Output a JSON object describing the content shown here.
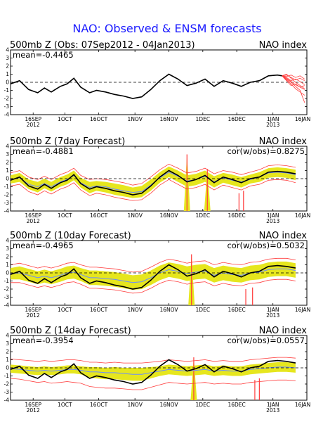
{
  "title": "NAO: Observed & ENSM forecasts",
  "colors": {
    "title": "#1a1aff",
    "observed": "#000000",
    "ensemble_members": "#ff3b3b",
    "spread": "#e6e61e",
    "ensemble_mean": "#6a8cff",
    "axis": "#000000"
  },
  "x_ticks": [
    {
      "day": 10,
      "label": "16SEP",
      "sub": "2012"
    },
    {
      "day": 24,
      "label": "1OCT",
      "sub": ""
    },
    {
      "day": 39,
      "label": "16OCT",
      "sub": ""
    },
    {
      "day": 55,
      "label": "1NOV",
      "sub": ""
    },
    {
      "day": 70,
      "label": "16NOV",
      "sub": ""
    },
    {
      "day": 85,
      "label": "1DEC",
      "sub": ""
    },
    {
      "day": 100,
      "label": "16DEC",
      "sub": ""
    },
    {
      "day": 116,
      "label": "1JAN",
      "sub": "2013"
    },
    {
      "day": 131,
      "label": "16JAN",
      "sub": ""
    }
  ],
  "y_ticks": [
    "4",
    "3",
    "2",
    "1",
    "0",
    "-1",
    "-2",
    "-3",
    "-4"
  ],
  "chart_data": [
    {
      "type": "line",
      "title": "500mb Z (Obs: 07Sep2012 - 04Jan2013)",
      "right_title": "NAO index",
      "stat_left": "mean=-0.4465",
      "stat_right": "",
      "ylim": [
        -4,
        4
      ],
      "xlim": [
        0,
        131
      ],
      "series": [
        {
          "role": "observed",
          "x": [
            0,
            4,
            8,
            12,
            15,
            18,
            22,
            25,
            28,
            31,
            35,
            38,
            42,
            46,
            50,
            54,
            58,
            62,
            66,
            70,
            74,
            78,
            82,
            86,
            90,
            94,
            98,
            102,
            106,
            110,
            114,
            118,
            120
          ],
          "values": [
            -0.2,
            0.2,
            -0.9,
            -1.3,
            -0.7,
            -1.2,
            -0.5,
            -0.2,
            0.5,
            -0.6,
            -1.3,
            -1.0,
            -1.2,
            -1.5,
            -1.7,
            -2.0,
            -1.8,
            -0.9,
            0.2,
            1.0,
            0.4,
            -0.4,
            -0.1,
            0.4,
            -0.5,
            0.2,
            -0.1,
            -0.5,
            0.0,
            0.2,
            0.8,
            0.9,
            0.8
          ]
        }
      ],
      "members": {
        "start_day": 120,
        "x": [
          120,
          122,
          124,
          126,
          128,
          130
        ],
        "values": [
          [
            0.8,
            0.9,
            0.6,
            0.3,
            0.5,
            0.2
          ],
          [
            0.8,
            0.5,
            0.1,
            -0.3,
            -0.6,
            -0.9
          ],
          [
            0.8,
            0.7,
            0.9,
            0.6,
            0.8,
            0.4
          ],
          [
            0.8,
            0.3,
            -0.2,
            -0.8,
            -1.2,
            -1.6
          ],
          [
            0.8,
            0.6,
            0.2,
            0.4,
            0.1,
            -0.3
          ],
          [
            0.8,
            0.2,
            -0.4,
            -0.2,
            -0.6,
            -0.4
          ],
          [
            0.8,
            1.0,
            0.5,
            0.0,
            -0.4,
            -0.8
          ],
          [
            0.8,
            0.4,
            0.0,
            -0.5,
            -1.0,
            -2.5
          ]
        ]
      }
    },
    {
      "type": "line",
      "title": "500mb Z (7day Forecast)",
      "right_title": "NAO index",
      "stat_left": "mean=-0.4881",
      "stat_right": "cor(w/obs)=0.8275",
      "ylim": [
        -4,
        4
      ],
      "xlim": [
        0,
        131
      ],
      "x": [
        0,
        4,
        8,
        12,
        15,
        18,
        22,
        25,
        28,
        31,
        35,
        38,
        42,
        46,
        50,
        54,
        58,
        62,
        66,
        70,
        74,
        78,
        82,
        86,
        90,
        94,
        98,
        102,
        106,
        110,
        114,
        118,
        122,
        126
      ],
      "observed": [
        -0.2,
        0.2,
        -0.9,
        -1.3,
        -0.7,
        -1.2,
        -0.5,
        -0.2,
        0.5,
        -0.6,
        -1.3,
        -1.0,
        -1.2,
        -1.5,
        -1.7,
        -2.0,
        -1.8,
        -0.9,
        0.2,
        1.0,
        0.4,
        -0.4,
        -0.1,
        0.4,
        -0.5,
        0.2,
        -0.1,
        -0.5,
        0.0,
        0.2,
        0.8,
        0.9,
        0.8,
        0.6
      ],
      "mean": [
        -0.1,
        0.1,
        -0.7,
        -1.0,
        -0.6,
        -1.0,
        -0.4,
        -0.1,
        0.4,
        -0.5,
        -1.1,
        -0.9,
        -1.0,
        -1.3,
        -1.5,
        -1.7,
        -1.6,
        -0.8,
        0.1,
        0.8,
        0.3,
        -0.3,
        -0.1,
        0.3,
        -0.4,
        0.1,
        -0.2,
        -0.4,
        -0.1,
        0.2,
        0.7,
        0.8,
        0.7,
        0.5
      ],
      "spread_lo": [
        -0.6,
        -0.4,
        -1.3,
        -1.7,
        -1.2,
        -1.6,
        -1.0,
        -0.7,
        -0.2,
        -1.1,
        -1.8,
        -1.5,
        -1.7,
        -2.0,
        -2.2,
        -2.4,
        -2.3,
        -1.5,
        -0.5,
        0.2,
        -0.4,
        -1.0,
        -0.8,
        -0.4,
        -1.1,
        -0.5,
        -0.8,
        -1.1,
        -0.6,
        -0.4,
        0.1,
        0.2,
        0.1,
        -0.2
      ],
      "spread_hi": [
        0.4,
        0.7,
        -0.1,
        -0.4,
        0.0,
        -0.4,
        0.2,
        0.5,
        1.0,
        0.1,
        -0.4,
        -0.3,
        -0.4,
        -0.6,
        -0.8,
        -1.1,
        -0.9,
        -0.1,
        0.8,
        1.5,
        1.0,
        0.4,
        0.6,
        1.0,
        0.3,
        0.7,
        0.5,
        0.2,
        0.5,
        0.8,
        1.3,
        1.4,
        1.3,
        1.1
      ],
      "env_lo": [
        -0.9,
        -0.7,
        -1.6,
        -2.0,
        -1.5,
        -1.9,
        -1.3,
        -1.0,
        -0.5,
        -1.4,
        -2.1,
        -1.8,
        -2.0,
        -2.3,
        -2.5,
        -2.7,
        -2.6,
        -1.8,
        -0.8,
        -0.1,
        -0.7,
        -1.3,
        -1.1,
        -0.7,
        -1.4,
        -0.8,
        -1.1,
        -1.4,
        -0.9,
        -0.7,
        -0.2,
        -0.1,
        -0.2,
        -0.5
      ],
      "env_hi": [
        0.7,
        1.0,
        0.2,
        -0.1,
        0.3,
        -0.1,
        0.5,
        0.8,
        1.3,
        0.4,
        -0.1,
        0.0,
        -0.1,
        -0.3,
        -0.5,
        -0.8,
        -0.6,
        0.2,
        1.1,
        1.8,
        1.3,
        0.7,
        0.9,
        1.3,
        0.6,
        1.0,
        0.8,
        0.5,
        0.8,
        1.1,
        1.6,
        1.7,
        1.6,
        1.4
      ],
      "spikes": [
        {
          "x": 78,
          "lo": -4,
          "hi": 3.0,
          "spread": true
        },
        {
          "x": 87,
          "lo": -4,
          "hi": 1.2,
          "spread": true
        },
        {
          "x": 101,
          "lo": -4,
          "hi": -1.8,
          "spread": false
        },
        {
          "x": 103,
          "lo": -4,
          "hi": -1.5,
          "spread": false
        }
      ]
    },
    {
      "type": "line",
      "title": "500mb Z (10day Forecast)",
      "right_title": "NAO index",
      "stat_left": "mean=-0.4965",
      "stat_right": "cor(w/obs)=0.5032",
      "ylim": [
        -4,
        4
      ],
      "xlim": [
        0,
        131
      ],
      "x": [
        0,
        4,
        8,
        12,
        15,
        18,
        22,
        25,
        28,
        31,
        35,
        38,
        42,
        46,
        50,
        54,
        58,
        62,
        66,
        70,
        74,
        78,
        82,
        86,
        90,
        94,
        98,
        102,
        106,
        110,
        114,
        118,
        122,
        126
      ],
      "observed": [
        -0.2,
        0.2,
        -0.9,
        -1.3,
        -0.7,
        -1.2,
        -0.5,
        -0.2,
        0.5,
        -0.6,
        -1.3,
        -1.0,
        -1.2,
        -1.5,
        -1.7,
        -2.0,
        -1.8,
        -0.9,
        0.2,
        1.0,
        0.4,
        -0.4,
        -0.1,
        0.4,
        -0.5,
        0.2,
        -0.1,
        -0.5,
        0.0,
        0.2,
        0.8,
        0.9,
        0.8,
        0.6
      ],
      "mean": [
        -0.1,
        0.0,
        -0.3,
        -0.6,
        -0.4,
        -0.6,
        -0.3,
        0.0,
        0.1,
        -0.2,
        -0.6,
        -0.6,
        -0.7,
        -0.8,
        -1.0,
        -1.2,
        -1.1,
        -0.6,
        0.0,
        0.4,
        0.2,
        -0.1,
        0.1,
        0.2,
        -0.3,
        0.0,
        -0.2,
        -0.3,
        0.0,
        0.1,
        0.4,
        0.5,
        0.5,
        0.3
      ],
      "spread_lo": [
        -0.8,
        -0.8,
        -1.1,
        -1.4,
        -1.2,
        -1.4,
        -1.1,
        -0.8,
        -0.7,
        -1.0,
        -1.5,
        -1.5,
        -1.6,
        -1.7,
        -1.9,
        -2.1,
        -2.0,
        -1.5,
        -0.9,
        -0.5,
        -0.7,
        -1.0,
        -0.8,
        -0.7,
        -1.2,
        -0.9,
        -1.1,
        -1.2,
        -0.9,
        -0.8,
        -0.5,
        -0.4,
        -0.4,
        -0.6
      ],
      "spread_hi": [
        0.6,
        0.8,
        0.5,
        0.2,
        0.4,
        0.2,
        0.5,
        0.8,
        0.9,
        0.6,
        0.3,
        0.3,
        0.2,
        0.1,
        -0.1,
        -0.3,
        -0.2,
        0.3,
        0.9,
        1.3,
        1.1,
        0.8,
        1.0,
        1.1,
        0.6,
        0.9,
        0.7,
        0.6,
        0.9,
        1.0,
        1.3,
        1.4,
        1.4,
        1.2
      ],
      "env_lo": [
        -1.2,
        -1.2,
        -1.5,
        -1.8,
        -1.6,
        -1.8,
        -1.5,
        -1.2,
        -1.1,
        -1.4,
        -1.9,
        -1.9,
        -2.0,
        -2.1,
        -2.3,
        -2.5,
        -2.4,
        -1.9,
        -1.3,
        -0.9,
        -1.1,
        -1.4,
        -1.2,
        -1.1,
        -1.6,
        -1.3,
        -1.5,
        -1.6,
        -1.3,
        -1.2,
        -0.9,
        -0.8,
        -0.8,
        -1.0
      ],
      "env_hi": [
        1.0,
        1.2,
        0.9,
        0.6,
        0.8,
        0.6,
        0.9,
        1.2,
        1.3,
        1.0,
        0.7,
        0.7,
        0.6,
        0.5,
        0.3,
        0.1,
        0.2,
        0.7,
        1.3,
        1.7,
        1.5,
        1.2,
        1.4,
        1.5,
        1.0,
        1.3,
        1.1,
        1.0,
        1.3,
        1.4,
        1.7,
        1.8,
        1.8,
        1.6
      ],
      "spikes": [
        {
          "x": 80,
          "lo": -4,
          "hi": 2.3,
          "spread": true
        },
        {
          "x": 104,
          "lo": -4,
          "hi": -2.0,
          "spread": false
        },
        {
          "x": 107,
          "lo": -4,
          "hi": -1.8,
          "spread": false
        }
      ]
    },
    {
      "type": "line",
      "title": "500mb Z (14day Forecast)",
      "right_title": "NAO index",
      "stat_left": "mean=-0.3954",
      "stat_right": "cor(w/obs)=0.0557",
      "ylim": [
        -4,
        4
      ],
      "xlim": [
        0,
        131
      ],
      "x": [
        0,
        4,
        8,
        12,
        15,
        18,
        22,
        25,
        28,
        31,
        35,
        38,
        42,
        46,
        50,
        54,
        58,
        62,
        66,
        70,
        74,
        78,
        82,
        86,
        90,
        94,
        98,
        102,
        106,
        110,
        114,
        118,
        122,
        126
      ],
      "observed": [
        -0.2,
        0.2,
        -0.9,
        -1.3,
        -0.7,
        -1.2,
        -0.5,
        -0.2,
        0.5,
        -0.6,
        -1.3,
        -1.0,
        -1.2,
        -1.5,
        -1.7,
        -2.0,
        -1.8,
        -0.9,
        0.2,
        1.0,
        0.4,
        -0.4,
        -0.1,
        0.4,
        -0.5,
        0.2,
        -0.1,
        -0.5,
        0.0,
        0.2,
        0.8,
        0.9,
        0.8,
        0.6
      ],
      "mean": [
        -0.1,
        -0.2,
        -0.3,
        -0.4,
        -0.3,
        -0.4,
        -0.3,
        -0.2,
        -0.2,
        -0.3,
        -0.5,
        -0.5,
        -0.6,
        -0.6,
        -0.7,
        -0.8,
        -0.8,
        -0.6,
        -0.4,
        -0.2,
        -0.3,
        -0.4,
        -0.3,
        -0.2,
        -0.4,
        -0.3,
        -0.4,
        -0.4,
        -0.2,
        -0.1,
        0.0,
        0.1,
        0.1,
        0.0
      ],
      "spread_lo": [
        -0.6,
        -0.7,
        -0.8,
        -0.9,
        -0.8,
        -0.9,
        -0.8,
        -0.7,
        -0.7,
        -0.8,
        -1.2,
        -1.3,
        -1.4,
        -1.4,
        -1.5,
        -1.6,
        -1.6,
        -1.3,
        -1.0,
        -0.8,
        -0.9,
        -1.0,
        -0.9,
        -0.8,
        -1.0,
        -0.9,
        -1.0,
        -1.0,
        -0.8,
        -0.7,
        -0.6,
        -0.5,
        -0.5,
        -0.6
      ],
      "spread_hi": [
        0.4,
        0.3,
        0.2,
        0.1,
        0.2,
        0.1,
        0.2,
        0.3,
        0.3,
        0.2,
        0.1,
        0.1,
        0.0,
        0.1,
        0.0,
        0.0,
        0.0,
        0.1,
        0.2,
        0.4,
        0.3,
        0.2,
        0.3,
        0.4,
        0.2,
        0.3,
        0.2,
        0.2,
        0.4,
        0.5,
        0.6,
        0.7,
        0.7,
        0.6
      ],
      "env_lo": [
        -1.3,
        -1.4,
        -1.6,
        -1.8,
        -1.7,
        -1.9,
        -1.8,
        -1.7,
        -1.8,
        -1.9,
        -2.3,
        -2.4,
        -2.5,
        -2.5,
        -2.6,
        -2.7,
        -2.7,
        -2.4,
        -2.1,
        -1.8,
        -1.9,
        -2.0,
        -1.9,
        -1.8,
        -2.0,
        -1.9,
        -2.0,
        -2.0,
        -1.8,
        -1.7,
        -1.6,
        -1.5,
        -1.5,
        -1.6
      ],
      "env_hi": [
        1.1,
        1.0,
        0.9,
        0.8,
        0.9,
        0.8,
        0.9,
        1.0,
        1.0,
        0.9,
        0.7,
        0.7,
        0.6,
        0.7,
        0.6,
        0.6,
        0.6,
        0.7,
        0.8,
        1.0,
        0.9,
        0.8,
        0.9,
        1.0,
        0.8,
        0.9,
        0.8,
        0.8,
        1.0,
        1.1,
        1.2,
        1.3,
        1.3,
        1.2
      ],
      "spikes": [
        {
          "x": 81,
          "lo": -4,
          "hi": 1.3,
          "spread": true
        },
        {
          "x": 108,
          "lo": -4,
          "hi": -1.5,
          "spread": false
        },
        {
          "x": 110,
          "lo": -4,
          "hi": -1.3,
          "spread": false
        }
      ]
    }
  ]
}
